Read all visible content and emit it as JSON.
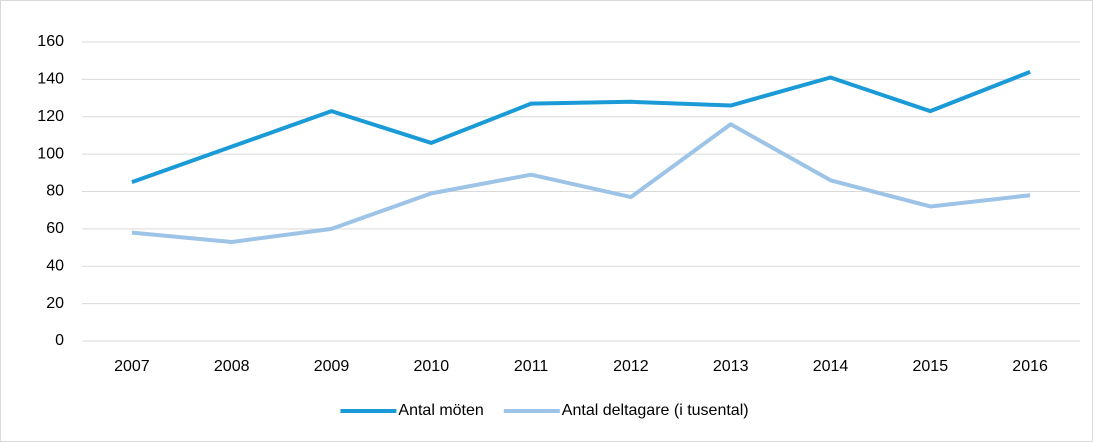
{
  "chart_data": {
    "type": "line",
    "categories": [
      "2007",
      "2008",
      "2009",
      "2010",
      "2011",
      "2012",
      "2013",
      "2014",
      "2015",
      "2016"
    ],
    "series": [
      {
        "name": "Antal möten",
        "color": "#1a9ad6",
        "values": [
          85,
          104,
          123,
          106,
          127,
          128,
          126,
          141,
          123,
          144
        ]
      },
      {
        "name": "Antal deltagare (i tusental)",
        "color": "#9dc3e6",
        "values": [
          58,
          53,
          60,
          79,
          89,
          77,
          116,
          86,
          72,
          78
        ]
      }
    ],
    "ylim": [
      0,
      160
    ],
    "yticks": [
      0,
      20,
      40,
      60,
      80,
      100,
      120,
      140,
      160
    ],
    "grid": true,
    "legend": "bottom"
  }
}
